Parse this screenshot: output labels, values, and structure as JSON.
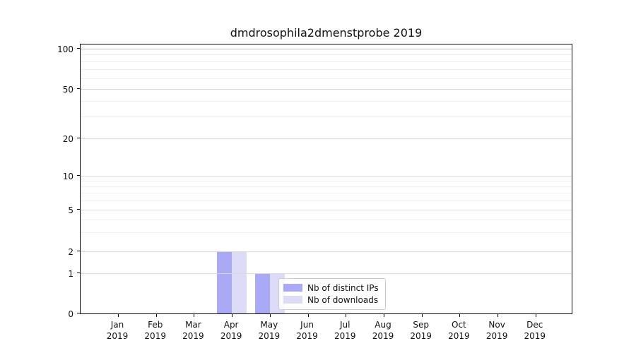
{
  "chart_data": {
    "type": "bar",
    "title": "dmdrosophila2dmenstprobe 2019",
    "categories": [
      "Jan",
      "Feb",
      "Mar",
      "Apr",
      "May",
      "Jun",
      "Jul",
      "Aug",
      "Sep",
      "Oct",
      "Nov",
      "Dec"
    ],
    "year_label": "2019",
    "series": [
      {
        "name": "Nb of distinct IPs",
        "color": "#a9a9f6",
        "values": [
          0,
          0,
          0,
          2,
          1,
          0,
          0,
          0,
          0,
          0,
          0,
          0
        ]
      },
      {
        "name": "Nb of downloads",
        "color": "#dcdcf8",
        "values": [
          0,
          0,
          0,
          2,
          1,
          0,
          0,
          0,
          0,
          0,
          0,
          0
        ]
      }
    ],
    "yscale": "symlog",
    "yticks": [
      0,
      1,
      2,
      5,
      10,
      20,
      50,
      100
    ],
    "ylim": [
      0,
      112
    ],
    "grid": "both",
    "legend": {
      "position": "inside-lower-middle",
      "entries": [
        {
          "label": "Nb of distinct IPs",
          "color": "#a9a9f6"
        },
        {
          "label": "Nb of downloads",
          "color": "#dcdcf8"
        }
      ]
    },
    "colors": {
      "axis": "#000000",
      "text": "#111111",
      "grid_major": "#d9d9d9",
      "grid_minor": "#efefef",
      "grid_top": "#bdbdbd"
    }
  }
}
